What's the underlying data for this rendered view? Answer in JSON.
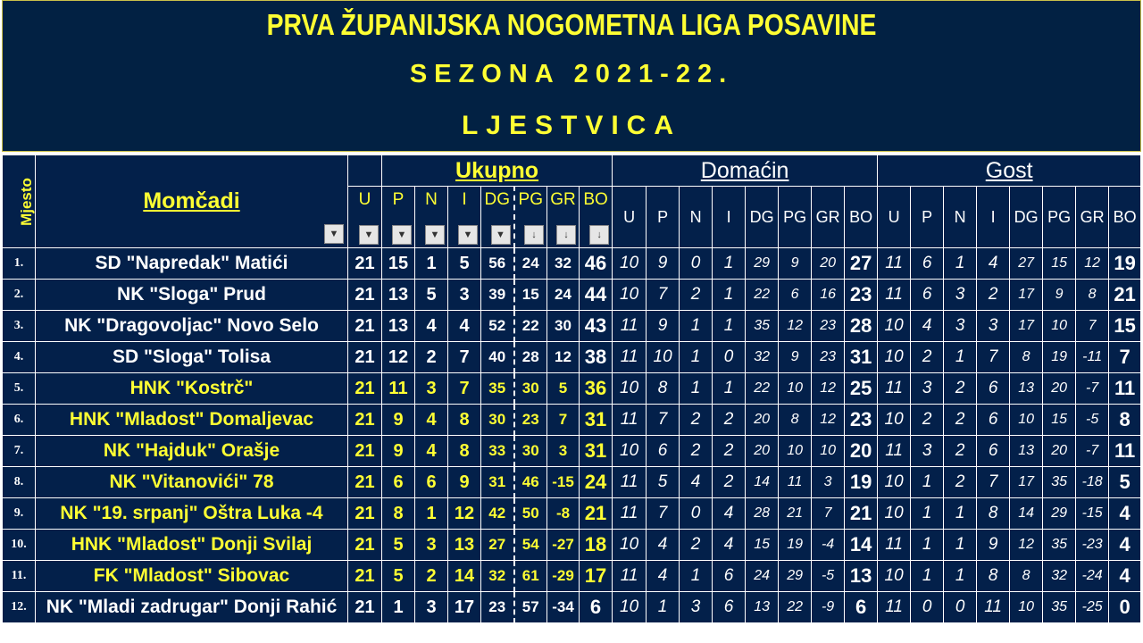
{
  "title": "PRVA ŽUPANIJSKA NOGOMETNA LIGA POSAVINE",
  "season": "SEZONA 2021-22.",
  "subtitle": "LJESTVICA",
  "headers": {
    "rank": "Mjesto",
    "team": "Momčadi",
    "total": "Ukupno",
    "home": "Domaćin",
    "away": "Gost",
    "cols": [
      "U",
      "P",
      "N",
      "I",
      "DG",
      "PG",
      "GR",
      "BO"
    ]
  },
  "rows": [
    {
      "rank": "1.",
      "team": "SD \"Napredak\" Matići",
      "highlight": false,
      "total": [
        "21",
        "15",
        "1",
        "5",
        "56",
        "24",
        "32",
        "46"
      ],
      "home": [
        "10",
        "9",
        "0",
        "1",
        "29",
        "9",
        "20",
        "27"
      ],
      "away": [
        "11",
        "6",
        "1",
        "4",
        "27",
        "15",
        "12",
        "19"
      ]
    },
    {
      "rank": "2.",
      "team": "NK \"Sloga\" Prud",
      "highlight": false,
      "total": [
        "21",
        "13",
        "5",
        "3",
        "39",
        "15",
        "24",
        "44"
      ],
      "home": [
        "10",
        "7",
        "2",
        "1",
        "22",
        "6",
        "16",
        "23"
      ],
      "away": [
        "11",
        "6",
        "3",
        "2",
        "17",
        "9",
        "8",
        "21"
      ]
    },
    {
      "rank": "3.",
      "team": "NK \"Dragovoljac\" Novo Selo",
      "highlight": false,
      "total": [
        "21",
        "13",
        "4",
        "4",
        "52",
        "22",
        "30",
        "43"
      ],
      "home": [
        "11",
        "9",
        "1",
        "1",
        "35",
        "12",
        "23",
        "28"
      ],
      "away": [
        "10",
        "4",
        "3",
        "3",
        "17",
        "10",
        "7",
        "15"
      ]
    },
    {
      "rank": "4.",
      "team": "SD \"Sloga\" Tolisa",
      "highlight": false,
      "total": [
        "21",
        "12",
        "2",
        "7",
        "40",
        "28",
        "12",
        "38"
      ],
      "home": [
        "11",
        "10",
        "1",
        "0",
        "32",
        "9",
        "23",
        "31"
      ],
      "away": [
        "10",
        "2",
        "1",
        "7",
        "8",
        "19",
        "-11",
        "7"
      ]
    },
    {
      "rank": "5.",
      "team": "HNK \"Kostrč\"",
      "highlight": true,
      "total": [
        "21",
        "11",
        "3",
        "7",
        "35",
        "30",
        "5",
        "36"
      ],
      "home": [
        "10",
        "8",
        "1",
        "1",
        "22",
        "10",
        "12",
        "25"
      ],
      "away": [
        "11",
        "3",
        "2",
        "6",
        "13",
        "20",
        "-7",
        "11"
      ]
    },
    {
      "rank": "6.",
      "team": "HNK \"Mladost\" Domaljevac",
      "highlight": true,
      "total": [
        "21",
        "9",
        "4",
        "8",
        "30",
        "23",
        "7",
        "31"
      ],
      "home": [
        "11",
        "7",
        "2",
        "2",
        "20",
        "8",
        "12",
        "23"
      ],
      "away": [
        "10",
        "2",
        "2",
        "6",
        "10",
        "15",
        "-5",
        "8"
      ]
    },
    {
      "rank": "7.",
      "team": "NK \"Hajduk\" Orašje",
      "highlight": true,
      "total": [
        "21",
        "9",
        "4",
        "8",
        "33",
        "30",
        "3",
        "31"
      ],
      "home": [
        "10",
        "6",
        "2",
        "2",
        "20",
        "10",
        "10",
        "20"
      ],
      "away": [
        "11",
        "3",
        "2",
        "6",
        "13",
        "20",
        "-7",
        "11"
      ]
    },
    {
      "rank": "8.",
      "team": "NK \"Vitanovići\" 78",
      "highlight": true,
      "total": [
        "21",
        "6",
        "6",
        "9",
        "31",
        "46",
        "-15",
        "24"
      ],
      "home": [
        "11",
        "5",
        "4",
        "2",
        "14",
        "11",
        "3",
        "19"
      ],
      "away": [
        "10",
        "1",
        "2",
        "7",
        "17",
        "35",
        "-18",
        "5"
      ]
    },
    {
      "rank": "9.",
      "team": "NK \"19. srpanj\" Oštra Luka -4",
      "highlight": true,
      "total": [
        "21",
        "8",
        "1",
        "12",
        "42",
        "50",
        "-8",
        "21"
      ],
      "home": [
        "11",
        "7",
        "0",
        "4",
        "28",
        "21",
        "7",
        "21"
      ],
      "away": [
        "10",
        "1",
        "1",
        "8",
        "14",
        "29",
        "-15",
        "4"
      ]
    },
    {
      "rank": "10.",
      "team": "HNK \"Mladost\" Donji Svilaj",
      "highlight": true,
      "total": [
        "21",
        "5",
        "3",
        "13",
        "27",
        "54",
        "-27",
        "18"
      ],
      "home": [
        "10",
        "4",
        "2",
        "4",
        "15",
        "19",
        "-4",
        "14"
      ],
      "away": [
        "11",
        "1",
        "1",
        "9",
        "12",
        "35",
        "-23",
        "4"
      ]
    },
    {
      "rank": "11.",
      "team": "FK \"Mladost\" Sibovac",
      "highlight": true,
      "total": [
        "21",
        "5",
        "2",
        "14",
        "32",
        "61",
        "-29",
        "17"
      ],
      "home": [
        "11",
        "4",
        "1",
        "6",
        "24",
        "29",
        "-5",
        "13"
      ],
      "away": [
        "10",
        "1",
        "1",
        "8",
        "8",
        "32",
        "-24",
        "4"
      ]
    },
    {
      "rank": "12.",
      "team": "NK \"Mladi zadrugar\" Donji Rahić",
      "highlight": false,
      "total": [
        "21",
        "1",
        "3",
        "17",
        "23",
        "57",
        "-34",
        "6"
      ],
      "home": [
        "10",
        "1",
        "3",
        "6",
        "13",
        "22",
        "-9",
        "6"
      ],
      "away": [
        "11",
        "0",
        "0",
        "11",
        "10",
        "35",
        "-25",
        "0"
      ]
    }
  ],
  "colors": {
    "background": "#03204a",
    "banner": "#022143",
    "accent": "#ffff33",
    "text": "#ffffff"
  },
  "icons": {
    "filter_dropdown": "filter-dropdown-icon",
    "sort_descending": "sort-descending-icon"
  }
}
